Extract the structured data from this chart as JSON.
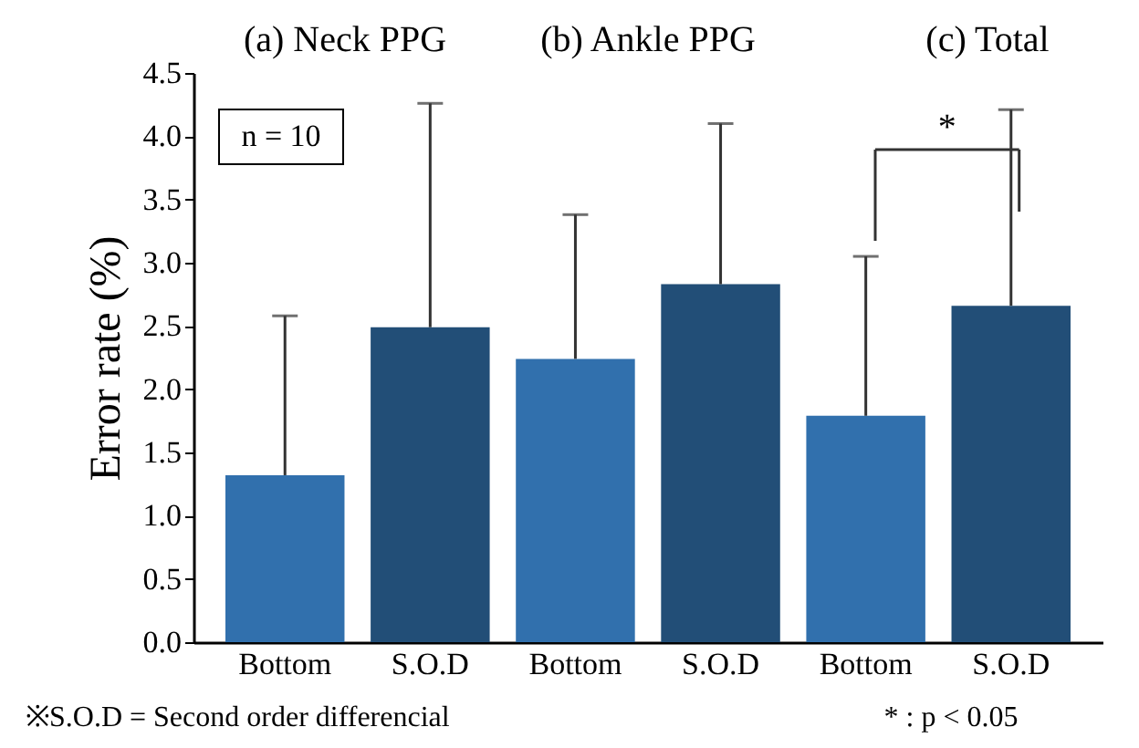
{
  "chart_data": {
    "type": "bar",
    "ylabel": "Error rate (%)",
    "categories": [
      "Bottom",
      "S.O.D",
      "Bottom",
      "S.O.D",
      "Bottom",
      "S.O.D"
    ],
    "values": [
      1.32,
      2.49,
      2.24,
      2.83,
      1.79,
      2.66
    ],
    "colors": [
      "#3170ad",
      "#224e77",
      "#3170ad",
      "#224e77",
      "#3170ad",
      "#224e77"
    ],
    "errors": [
      [
        1.32,
        2.58
      ],
      [
        2.49,
        4.26
      ],
      [
        2.24,
        3.38
      ],
      [
        2.83,
        4.1
      ],
      [
        1.79,
        3.05
      ],
      [
        2.66,
        4.21
      ]
    ],
    "ylim": [
      0,
      4.5
    ],
    "yticks": [
      {
        "value": 0,
        "label": "0.0"
      },
      0.5,
      {
        "value": 1,
        "label": "1.0"
      },
      1.5,
      {
        "value": 2,
        "label": "2.0"
      },
      2.5,
      {
        "value": 3,
        "label": "3.0"
      },
      3.5,
      {
        "value": 4,
        "label": "4.0"
      },
      4.5
    ],
    "grid": false,
    "annotations": [
      "(a) Neck PPG",
      "(b) Ankle PPG",
      "(c) Total",
      "n = 10",
      "*",
      "※S.O.D = Second order differencial",
      "* : p < 0.05"
    ]
  }
}
